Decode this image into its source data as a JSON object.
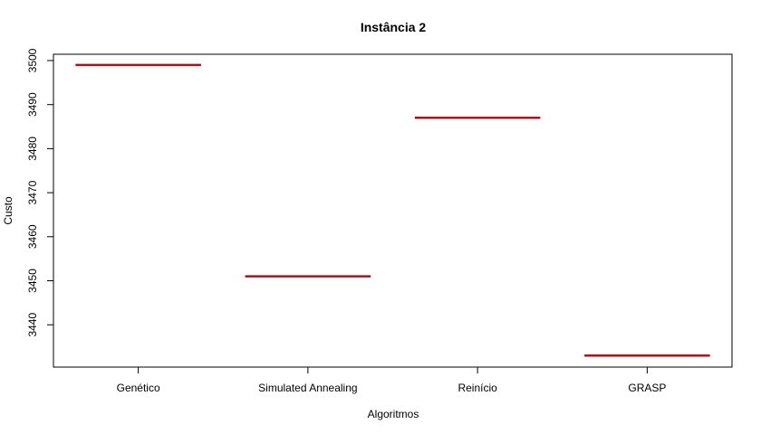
{
  "chart_data": {
    "type": "box",
    "title": "Instância 2",
    "xlabel": "Algoritmos",
    "ylabel": "Custo",
    "categories": [
      "Genético",
      "Simulated Annealing",
      "Reinício",
      "GRASP"
    ],
    "values": [
      3499,
      3451,
      3487,
      3433
    ],
    "ylim": [
      3431,
      3502
    ],
    "yticks": [
      3440,
      3450,
      3460,
      3470,
      3480,
      3490,
      3500
    ],
    "grid": false,
    "median_color": "#a5131c"
  }
}
